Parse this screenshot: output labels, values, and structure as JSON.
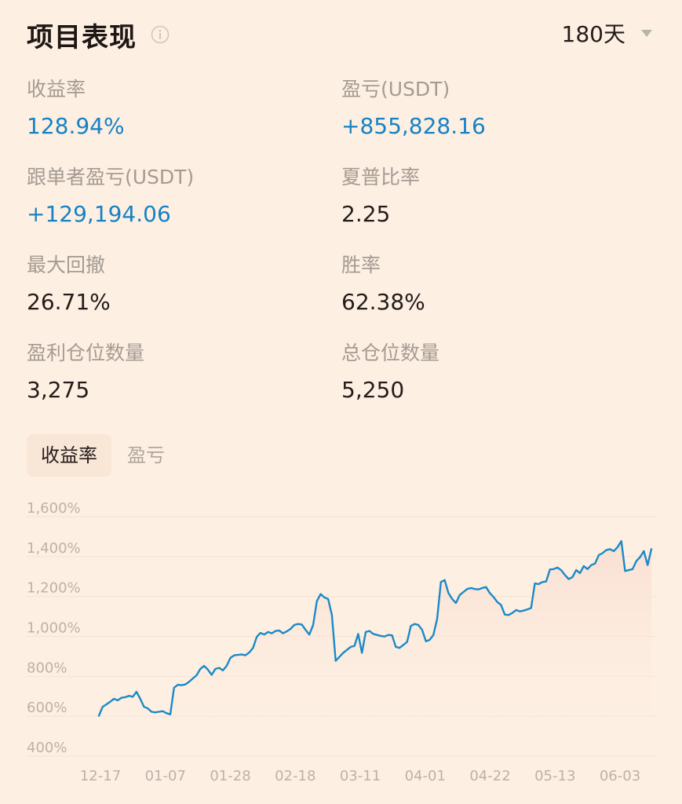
{
  "header": {
    "title": "项目表现",
    "info_icon": "info-circle-icon",
    "period": "180天",
    "caret_icon": "caret-down-icon"
  },
  "metrics": [
    {
      "label": "收益率",
      "value": "128.94%",
      "color": "#1782c3"
    },
    {
      "label": "盈亏(USDT)",
      "value": "+855,828.16",
      "color": "#1782c3"
    },
    {
      "label": "跟单者盈亏(USDT)",
      "value": "+129,194.06",
      "color": "#1782c3"
    },
    {
      "label": "夏普比率",
      "value": "2.25",
      "color": "#241c1a"
    },
    {
      "label": "最大回撤",
      "value": "26.71%",
      "color": "#241c1a"
    },
    {
      "label": "胜率",
      "value": "62.38%",
      "color": "#241c1a"
    },
    {
      "label": "盈利仓位数量",
      "value": "3,275",
      "color": "#241c1a"
    },
    {
      "label": "总仓位数量",
      "value": "5,250",
      "color": "#241c1a"
    }
  ],
  "tabs": [
    {
      "label": "收益率",
      "active": true
    },
    {
      "label": "盈亏",
      "active": false
    }
  ],
  "chart_data": {
    "type": "line",
    "color": "#1a8ac7",
    "y_ticks": [
      "1,600%",
      "1,400%",
      "1,200%",
      "1,000%",
      "800%",
      "600%",
      "400%"
    ],
    "ylim": [
      400,
      1600
    ],
    "x_ticks": [
      "12-17",
      "01-07",
      "01-28",
      "02-18",
      "03-11",
      "04-01",
      "04-22",
      "05-13",
      "06-03"
    ],
    "grid": true,
    "series": [
      {
        "values": [
          555,
          600,
          612,
          625,
          640,
          632,
          645,
          648,
          655,
          650,
          675,
          640,
          600,
          592,
          575,
          572,
          575,
          578,
          568,
          562,
          696,
          710,
          708,
          712,
          725,
          742,
          758,
          790,
          805,
          786,
          760,
          790,
          795,
          782,
          805,
          845,
          858,
          860,
          862,
          858,
          872,
          895,
          950,
          970,
          962,
          975,
          968,
          980,
          982,
          968,
          978,
          990,
          1010,
          1015,
          1012,
          985,
          962,
          1010,
          1130,
          1165,
          1148,
          1140,
          1060,
          830,
          850,
          870,
          885,
          900,
          905,
          965,
          870,
          975,
          980,
          965,
          960,
          955,
          952,
          960,
          958,
          900,
          895,
          910,
          925,
          1005,
          1015,
          1010,
          985,
          928,
          935,
          960,
          1040,
          1225,
          1235,
          1170,
          1140,
          1120,
          1160,
          1175,
          1190,
          1195,
          1190,
          1188,
          1195,
          1200,
          1170,
          1150,
          1125,
          1110,
          1062,
          1060,
          1070,
          1085,
          1078,
          1082,
          1088,
          1095,
          1218,
          1215,
          1225,
          1228,
          1288,
          1290,
          1298,
          1284,
          1260,
          1240,
          1250,
          1285,
          1270,
          1305,
          1290,
          1310,
          1318,
          1360,
          1370,
          1385,
          1390,
          1380,
          1400,
          1430,
          1280,
          1285,
          1290,
          1330,
          1350,
          1380,
          1310,
          1390
        ]
      }
    ]
  }
}
